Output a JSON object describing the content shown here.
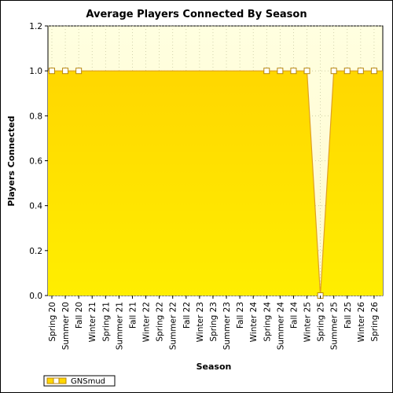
{
  "chart_data": {
    "type": "area",
    "title": "Average Players Connected By Season",
    "xlabel": "Season",
    "ylabel": "Players Connected",
    "ylim": [
      0,
      1.2
    ],
    "yticks": [
      "0.0",
      "0.2",
      "0.4",
      "0.6",
      "0.8",
      "1.0",
      "1.2"
    ],
    "grid": true,
    "legend_position": "bottom-left",
    "categories": [
      "Spring 20",
      "Summer 20",
      "Fall 20",
      "Winter 21",
      "Spring 21",
      "Summer 21",
      "Fall 21",
      "Winter 22",
      "Spring 22",
      "Summer 22",
      "Fall 22",
      "Winter 23",
      "Spring 23",
      "Summer 23",
      "Fall 23",
      "Winter 24",
      "Spring 24",
      "Summer 24",
      "Fall 24",
      "Winter 25",
      "Spring 25",
      "Summer 25",
      "Fall 25",
      "Winter 26",
      "Spring 26"
    ],
    "series": [
      {
        "name": "GNSmud",
        "color": "#ffd700",
        "values": [
          1.0,
          1.0,
          1.0,
          null,
          null,
          null,
          null,
          null,
          null,
          null,
          null,
          null,
          null,
          null,
          null,
          null,
          1.0,
          1.0,
          1.0,
          1.0,
          0.0,
          1.0,
          1.0,
          1.0,
          1.0
        ]
      }
    ]
  }
}
